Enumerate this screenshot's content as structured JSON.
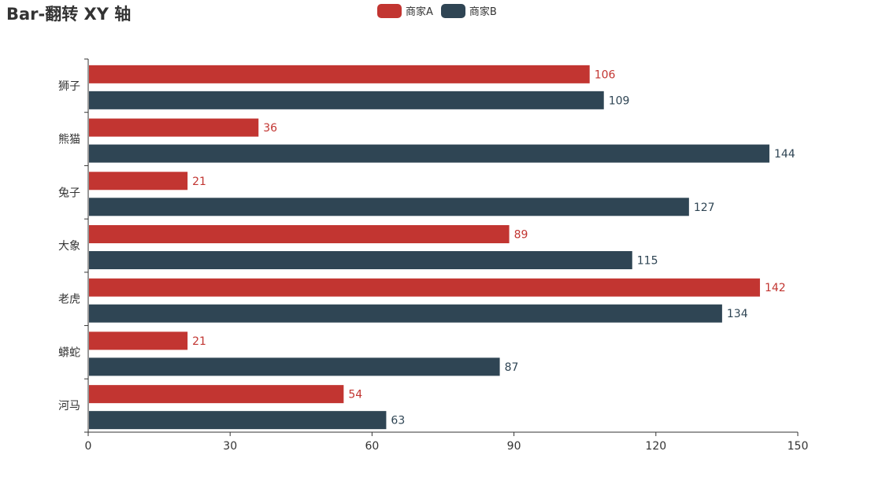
{
  "chart_data": {
    "type": "bar",
    "orientation": "horizontal",
    "title": "Bar-翻转 XY 轴",
    "categories": [
      "河马",
      "蟒蛇",
      "老虎",
      "大象",
      "兔子",
      "熊猫",
      "狮子"
    ],
    "series": [
      {
        "name": "商家A",
        "color": "#c23531",
        "values": [
          54,
          21,
          142,
          89,
          21,
          36,
          106
        ]
      },
      {
        "name": "商家B",
        "color": "#2f4554",
        "values": [
          63,
          87,
          134,
          115,
          127,
          144,
          109
        ]
      }
    ],
    "xlim": [
      0,
      150
    ],
    "xticks": [
      0,
      30,
      60,
      90,
      120,
      150
    ],
    "xlabel": "",
    "ylabel": "",
    "legend_position": "top-center",
    "grid": false
  }
}
